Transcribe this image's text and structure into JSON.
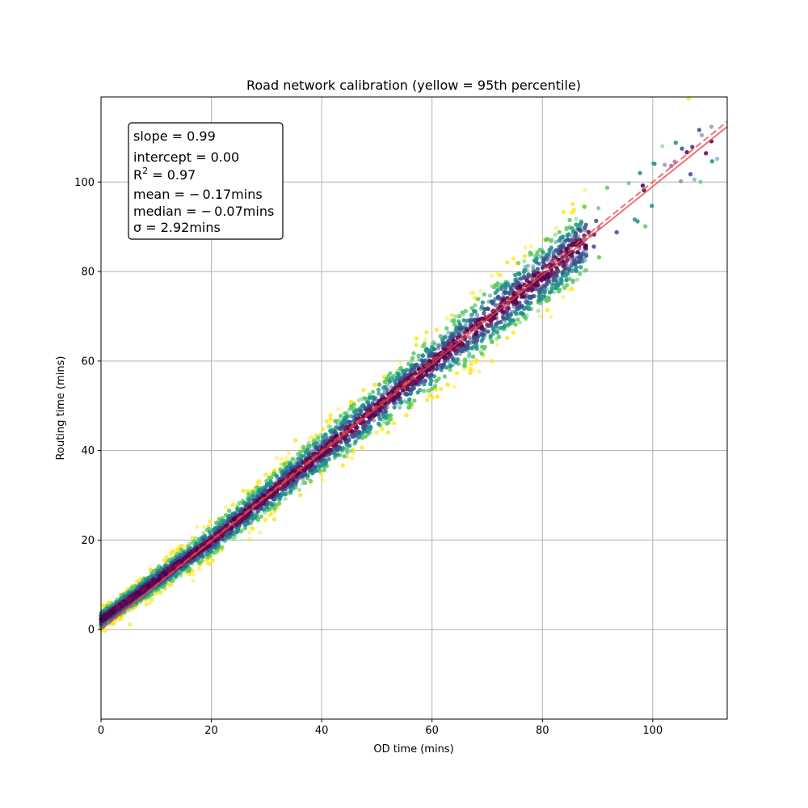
{
  "chart_data": {
    "type": "scatter",
    "title": "Road network calibration (yellow = 95th percentile)",
    "xlabel": "OD time (mins)",
    "ylabel": "Routing time (mins)",
    "xlim": [
      0,
      113.5
    ],
    "ylim": [
      -20,
      119
    ],
    "xticks": [
      0,
      20,
      40,
      60,
      80,
      100
    ],
    "yticks": [
      0,
      20,
      40,
      60,
      80,
      100
    ],
    "grid": true,
    "colormap": "viridis",
    "colors": {
      "viridis": [
        "#440154",
        "#3b528b",
        "#21918c",
        "#5ec962",
        "#fde725"
      ],
      "fit_line": "#ee4444",
      "identity_line": "#ee4444",
      "points_core": "#7a1050"
    },
    "stats_box": {
      "placement": "top-left",
      "lines": [
        {
          "name": "slope",
          "label": "slope",
          "value": "0.99"
        },
        {
          "name": "intercept",
          "label": "intercept",
          "value": "0.00"
        },
        {
          "name": "r2",
          "label": "R",
          "sup": "2",
          "value": "0.97"
        },
        {
          "name": "mean",
          "label": "mean",
          "value": " − 0.17mins"
        },
        {
          "name": "median",
          "label": "median",
          "value": " − 0.07mins"
        },
        {
          "name": "sigma",
          "label": "σ",
          "value": "2.92mins"
        }
      ]
    },
    "lines": [
      {
        "style": "solid",
        "slope": 0.99,
        "intercept": 0.0
      },
      {
        "style": "dashed",
        "slope": 1.0,
        "intercept": 0.0
      }
    ],
    "scatter_model": {
      "n_points": 9000,
      "x_range": [
        0,
        113.5
      ],
      "spread_sd": 2.92,
      "percentile_highlight": 95
    }
  }
}
